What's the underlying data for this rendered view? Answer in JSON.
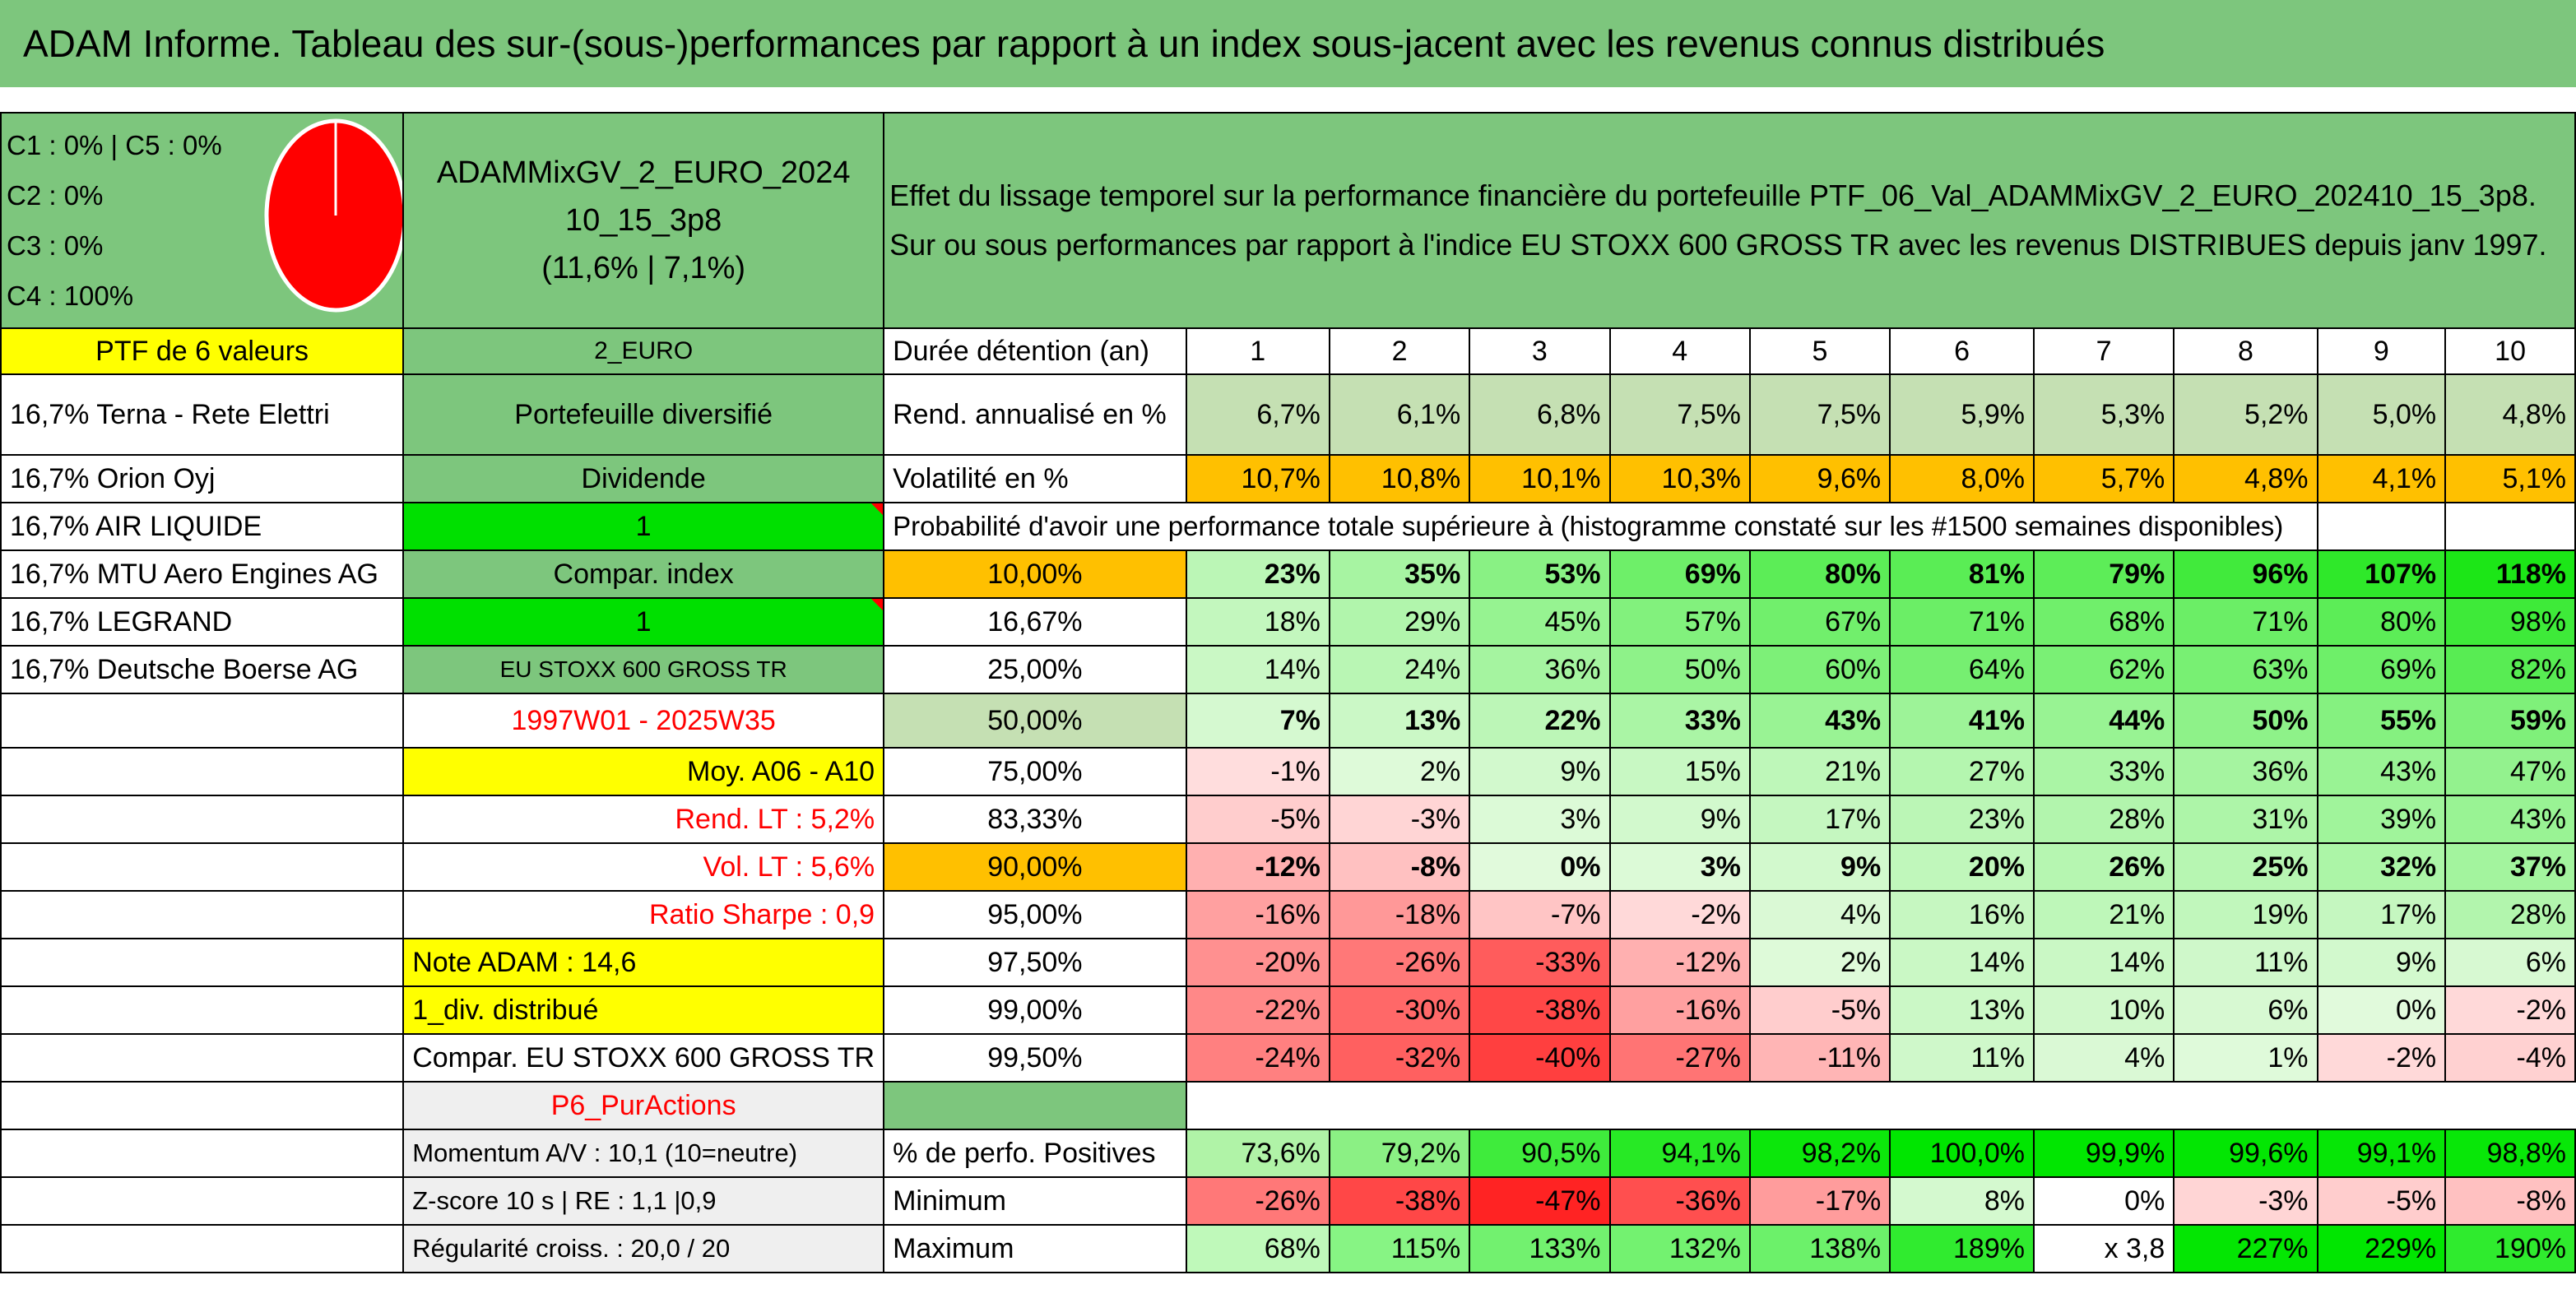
{
  "title": "ADAM Informe. Tableau des sur-(sous-)performances par rapport à un index sous-jacent avec les revenus connus distribués",
  "class_lines": [
    "C1 : 0% | C5 : 0%",
    "C2 : 0%",
    "C3 : 0%",
    "C4 : 100%"
  ],
  "pie": {
    "red": "#ff0000"
  },
  "portfolio_name_lines": [
    "ADAMMixGV_2_EURO_2024",
    "10_15_3p8",
    "(11,6% | 7,1%)"
  ],
  "description_lines": [
    "Effet du lissage temporel sur la performance financière du portefeuille PTF_06_Val_ADAMMixGV_2_EURO_202410_15_3p8.",
    "Sur ou sous performances par rapport à l'indice EU STOXX 600 GROSS TR avec les revenus DISTRIBUES depuis janv 1997."
  ],
  "left_col": {
    "ptf_label": "PTF de 6 valeurs",
    "holdings": [
      "16,7% Terna - Rete Elettri",
      "16,7% Orion Oyj",
      "16,7% AIR LIQUIDE",
      "16,7% MTU Aero Engines AG",
      "16,7% LEGRAND",
      "16,7% Deutsche Boerse AG"
    ]
  },
  "mid_col": {
    "currency": "2_EURO",
    "type": "Portefeuille diversifié",
    "dividend_label": "Dividende",
    "dividend_value": "1",
    "compar_label": "Compar. index",
    "compar_value": "1",
    "index_name": "EU STOXX 600 GROSS TR",
    "period": "1997W01 - 2025W35",
    "moy": "Moy. A06 - A10",
    "rend_lt": "Rend. LT : 5,2%",
    "vol_lt": "Vol. LT : 5,6%",
    "sharpe": "Ratio Sharpe : 0,9",
    "note": "Note ADAM : 14,6",
    "div": "1_div. distribué",
    "compar_full": "Compar. EU STOXX 600 GROSS TR",
    "category": "P6_PurActions",
    "momentum": "Momentum A/V : 10,1 (10=neutre)",
    "zscore": "Z-score 10 s | RE : 1,1 |0,9",
    "regularite": "Régularité croiss. : 20,0 / 20"
  },
  "table": {
    "duration_label": "Durée détention (an)",
    "years": [
      "1",
      "2",
      "3",
      "4",
      "5",
      "6",
      "7",
      "8",
      "9",
      "10"
    ],
    "rend_label": "Rend. annualisé en %",
    "rend": [
      "6,7%",
      "6,1%",
      "6,8%",
      "7,5%",
      "7,5%",
      "5,9%",
      "5,3%",
      "5,2%",
      "5,0%",
      "4,8%"
    ],
    "vol_label": "Volatilité en %",
    "vol": [
      "10,7%",
      "10,8%",
      "10,1%",
      "10,3%",
      "9,6%",
      "8,0%",
      "5,7%",
      "4,8%",
      "4,1%",
      "5,1%"
    ],
    "prob_label": "Probabilité d'avoir une performance totale supérieure à (histogramme constaté sur les #1500 semaines disponibles)",
    "prob_rows": [
      {
        "p": "10,00%",
        "v": [
          "23%",
          "35%",
          "53%",
          "69%",
          "80%",
          "81%",
          "79%",
          "96%",
          "107%",
          "118%"
        ]
      },
      {
        "p": "16,67%",
        "v": [
          "18%",
          "29%",
          "45%",
          "57%",
          "67%",
          "71%",
          "68%",
          "71%",
          "80%",
          "98%"
        ]
      },
      {
        "p": "25,00%",
        "v": [
          "14%",
          "24%",
          "36%",
          "50%",
          "60%",
          "64%",
          "62%",
          "63%",
          "69%",
          "82%"
        ]
      },
      {
        "p": "50,00%",
        "v": [
          "7%",
          "13%",
          "22%",
          "33%",
          "43%",
          "41%",
          "44%",
          "50%",
          "55%",
          "59%"
        ]
      },
      {
        "p": "75,00%",
        "v": [
          "-1%",
          "2%",
          "9%",
          "15%",
          "21%",
          "27%",
          "33%",
          "36%",
          "43%",
          "47%"
        ]
      },
      {
        "p": "83,33%",
        "v": [
          "-5%",
          "-3%",
          "3%",
          "9%",
          "17%",
          "23%",
          "28%",
          "31%",
          "39%",
          "43%"
        ]
      },
      {
        "p": "90,00%",
        "v": [
          "-12%",
          "-8%",
          "0%",
          "3%",
          "9%",
          "20%",
          "26%",
          "25%",
          "32%",
          "37%"
        ]
      },
      {
        "p": "95,00%",
        "v": [
          "-16%",
          "-18%",
          "-7%",
          "-2%",
          "4%",
          "16%",
          "21%",
          "19%",
          "17%",
          "28%"
        ]
      },
      {
        "p": "97,50%",
        "v": [
          "-20%",
          "-26%",
          "-33%",
          "-12%",
          "2%",
          "14%",
          "14%",
          "11%",
          "9%",
          "6%"
        ]
      },
      {
        "p": "99,00%",
        "v": [
          "-22%",
          "-30%",
          "-38%",
          "-16%",
          "-5%",
          "13%",
          "10%",
          "6%",
          "0%",
          "-2%"
        ]
      },
      {
        "p": "99,50%",
        "v": [
          "-24%",
          "-32%",
          "-40%",
          "-27%",
          "-11%",
          "11%",
          "4%",
          "1%",
          "-2%",
          "-4%"
        ]
      }
    ],
    "pos_label": "% de perfo. Positives",
    "pos": [
      "73,6%",
      "79,2%",
      "90,5%",
      "94,1%",
      "98,2%",
      "100,0%",
      "99,9%",
      "99,6%",
      "99,1%",
      "98,8%"
    ],
    "min_label": "Minimum",
    "min": [
      "-26%",
      "-38%",
      "-47%",
      "-36%",
      "-17%",
      "8%",
      "0%",
      "-3%",
      "-5%",
      "-8%"
    ],
    "max_label": "Maximum",
    "max": [
      "68%",
      "115%",
      "133%",
      "132%",
      "138%",
      "189%",
      "x 3,8",
      "227%",
      "229%",
      "190%"
    ]
  }
}
